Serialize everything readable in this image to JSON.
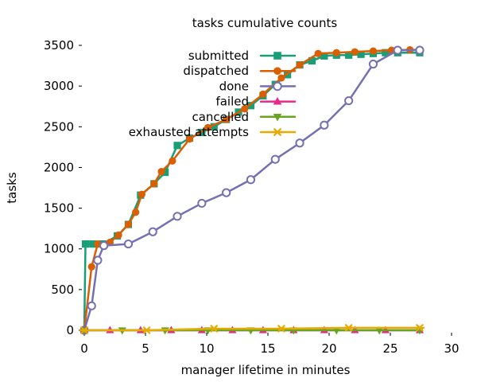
{
  "chart_data": {
    "type": "line",
    "title": "tasks cumulative counts",
    "xlabel": "manager lifetime in minutes",
    "ylabel": "tasks",
    "xlim": [
      0,
      30
    ],
    "ylim": [
      0,
      3500
    ],
    "x_ticks": [
      {
        "value": 0,
        "label": "0"
      },
      {
        "value": 5,
        "label": "5"
      },
      {
        "value": 10,
        "label": "10"
      },
      {
        "value": 15,
        "label": "15"
      },
      {
        "value": 20,
        "label": "20"
      },
      {
        "value": 25,
        "label": "25"
      },
      {
        "value": 30,
        "label": "30"
      }
    ],
    "y_ticks": [
      {
        "value": 0,
        "label": "0"
      },
      {
        "value": 500,
        "label": "500"
      },
      {
        "value": 1000,
        "label": "1000"
      },
      {
        "value": 1500,
        "label": "1500"
      },
      {
        "value": 2000,
        "label": "2000"
      },
      {
        "value": 2500,
        "label": "2500"
      },
      {
        "value": 3000,
        "label": "3000"
      },
      {
        "value": 3500,
        "label": "3500"
      }
    ],
    "grid": false,
    "legend_position": "top-right",
    "series": [
      {
        "name": "submitted",
        "color": "#1a9e77",
        "marker": "square",
        "points": [
          [
            0,
            0
          ],
          [
            0.1,
            1060
          ],
          [
            0.7,
            1060
          ],
          [
            1.5,
            1060
          ],
          [
            2.7,
            1160
          ],
          [
            3.6,
            1300
          ],
          [
            4.6,
            1660
          ],
          [
            5.7,
            1800
          ],
          [
            6.6,
            1940
          ],
          [
            7.6,
            2270
          ],
          [
            8.6,
            2360
          ],
          [
            9.6,
            2430
          ],
          [
            10.6,
            2500
          ],
          [
            11.6,
            2590
          ],
          [
            12.6,
            2680
          ],
          [
            13.6,
            2760
          ],
          [
            14.6,
            2880
          ],
          [
            15.6,
            3020
          ],
          [
            16.6,
            3140
          ],
          [
            17.6,
            3260
          ],
          [
            18.6,
            3310
          ],
          [
            19.6,
            3370
          ],
          [
            20.6,
            3380
          ],
          [
            21.6,
            3380
          ],
          [
            22.6,
            3390
          ],
          [
            23.6,
            3400
          ],
          [
            24.6,
            3410
          ],
          [
            25.6,
            3410
          ],
          [
            27.4,
            3410
          ]
        ]
      },
      {
        "name": "dispatched",
        "color": "#d95f02",
        "marker": "circle",
        "points": [
          [
            0,
            0
          ],
          [
            0.6,
            780
          ],
          [
            1.1,
            1060
          ],
          [
            2.1,
            1080
          ],
          [
            2.8,
            1170
          ],
          [
            3.6,
            1300
          ],
          [
            4.2,
            1450
          ],
          [
            4.7,
            1670
          ],
          [
            5.7,
            1800
          ],
          [
            6.3,
            1950
          ],
          [
            7.2,
            2080
          ],
          [
            8.6,
            2350
          ],
          [
            10.1,
            2490
          ],
          [
            11.6,
            2590
          ],
          [
            13.1,
            2720
          ],
          [
            14.6,
            2900
          ],
          [
            16.1,
            3100
          ],
          [
            17.6,
            3260
          ],
          [
            19.1,
            3400
          ],
          [
            20.6,
            3410
          ],
          [
            22.1,
            3420
          ],
          [
            23.6,
            3430
          ],
          [
            25.1,
            3440
          ],
          [
            26.6,
            3445
          ],
          [
            27.4,
            3445
          ]
        ]
      },
      {
        "name": "done",
        "color": "#7570b3",
        "marker": "circle-open",
        "points": [
          [
            0,
            0
          ],
          [
            0.6,
            300
          ],
          [
            1.1,
            860
          ],
          [
            1.6,
            1040
          ],
          [
            3.6,
            1060
          ],
          [
            5.6,
            1210
          ],
          [
            7.6,
            1400
          ],
          [
            9.6,
            1560
          ],
          [
            11.6,
            1690
          ],
          [
            13.6,
            1850
          ],
          [
            15.6,
            2100
          ],
          [
            17.6,
            2300
          ],
          [
            19.6,
            2520
          ],
          [
            21.6,
            2820
          ],
          [
            23.6,
            3270
          ],
          [
            25.6,
            3440
          ],
          [
            27.4,
            3440
          ]
        ]
      },
      {
        "name": "failed",
        "color": "#e7298a",
        "marker": "triangle-up",
        "points": [
          [
            0,
            0
          ],
          [
            2.1,
            0
          ],
          [
            4.6,
            0
          ],
          [
            7.1,
            0
          ],
          [
            9.6,
            0
          ],
          [
            12.1,
            0
          ],
          [
            14.6,
            0
          ],
          [
            17.1,
            0
          ],
          [
            19.6,
            0
          ],
          [
            22.1,
            0
          ],
          [
            24.6,
            0
          ],
          [
            27.4,
            0
          ]
        ]
      },
      {
        "name": "cancelled",
        "color": "#66a61e",
        "marker": "triangle-down",
        "points": [
          [
            0,
            0
          ],
          [
            3.1,
            0
          ],
          [
            6.6,
            0
          ],
          [
            10.1,
            0
          ],
          [
            13.6,
            0
          ],
          [
            17.1,
            0
          ],
          [
            20.6,
            0
          ],
          [
            24.1,
            0
          ],
          [
            27.4,
            0
          ]
        ]
      },
      {
        "name": "exhausted attempts",
        "color": "#e6ab02",
        "marker": "asterisk",
        "points": [
          [
            0,
            0
          ],
          [
            5.1,
            0
          ],
          [
            10.6,
            20
          ],
          [
            16.1,
            20
          ],
          [
            21.6,
            30
          ],
          [
            27.4,
            30
          ]
        ]
      }
    ]
  }
}
